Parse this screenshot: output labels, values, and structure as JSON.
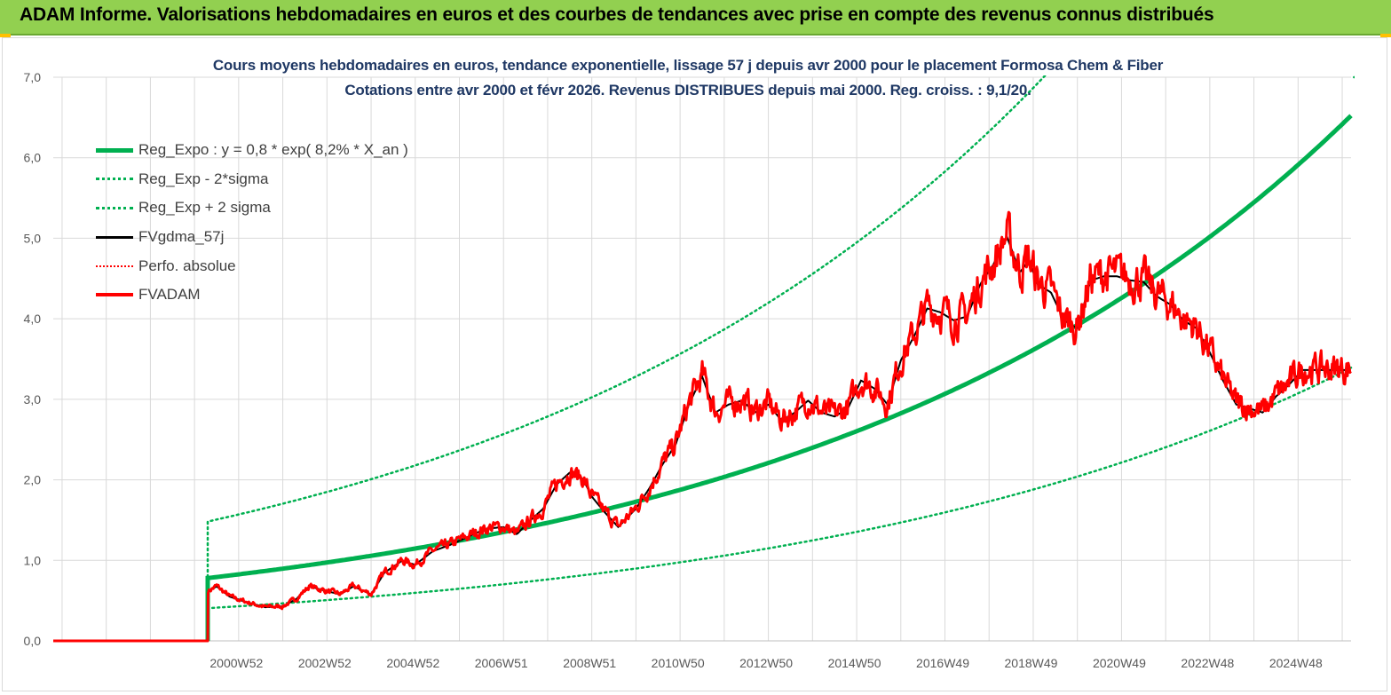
{
  "header": {
    "title": "ADAM Informe. Valorisations hebdomadaires en euros et des courbes de tendances avec prise en compte des revenus connus distribués"
  },
  "colors": {
    "header_bg": "#92d050",
    "accent": "#ffc000",
    "title_text": "#1f3864",
    "trend": "#00b050",
    "price": "#ff0000",
    "smooth": "#000000",
    "grid": "#d9d9d9"
  },
  "chart_data": {
    "type": "line",
    "title": "Cours moyens hebdomadaires en euros, tendance exponentielle, lissage 57 j depuis avr 2000 pour le placement Formosa Chem & Fiber",
    "subtitle": "Cotations entre avr 2000 et févr 2026. Revenus DISTRIBUES depuis mai 2000. Reg. croiss. : 9,1/20.",
    "x_range": [
      1996.8,
      2026.2
    ],
    "data_start": 2000.3,
    "ylim": [
      0,
      7
    ],
    "y_ticks": [
      0,
      1,
      2,
      3,
      4,
      5,
      6,
      7
    ],
    "y_tick_labels": [
      "0,0",
      "1,0",
      "2,0",
      "3,0",
      "4,0",
      "5,0",
      "6,0",
      "7,0"
    ],
    "x_ticks": [
      2000.95,
      2002.95,
      2004.95,
      2006.95,
      2008.95,
      2010.95,
      2012.95,
      2014.95,
      2016.95,
      2018.95,
      2020.95,
      2022.95,
      2024.95
    ],
    "x_tick_labels": [
      "2000W52",
      "2002W52",
      "2004W52",
      "2006W51",
      "2008W51",
      "2010W50",
      "2012W50",
      "2014W50",
      "2016W49",
      "2018W49",
      "2020W49",
      "2022W48",
      "2024W48"
    ],
    "grid": true,
    "regression": {
      "a": 0.78,
      "rate": 0.082,
      "x0": 2000.3,
      "sigma_factor_low": 0.52,
      "sigma_factor_high": 1.9
    },
    "legend": [
      {
        "label": "Reg_Expo : y = 0,8 * exp( 8,2% *  X_an )",
        "style": "solid-green"
      },
      {
        "label": "Reg_Exp - 2*sigma",
        "style": "dot-green"
      },
      {
        "label": "Reg_Exp + 2 sigma",
        "style": "dot-green"
      },
      {
        "label": "FVgdma_57j",
        "style": "solid-black"
      },
      {
        "label": "Perfo. absolue",
        "style": "dot-red"
      },
      {
        "label": "FVADAM",
        "style": "solid-red"
      }
    ],
    "series": [
      {
        "name": "FVADAM",
        "x": [
          1996.8,
          2000.3,
          2000.31,
          2000.5,
          2000.8,
          2001.2,
          2001.6,
          2002.0,
          2002.3,
          2002.6,
          2003.0,
          2003.3,
          2003.6,
          2004.0,
          2004.3,
          2004.7,
          2005.0,
          2005.4,
          2005.8,
          2006.2,
          2006.6,
          2007.0,
          2007.3,
          2007.6,
          2007.9,
          2008.2,
          2008.5,
          2008.8,
          2009.0,
          2009.3,
          2009.6,
          2010.0,
          2010.3,
          2010.6,
          2010.9,
          2011.2,
          2011.5,
          2011.8,
          2012.1,
          2012.4,
          2012.7,
          2013.0,
          2013.3,
          2013.6,
          2013.9,
          2014.2,
          2014.5,
          2014.8,
          2015.1,
          2015.4,
          2015.7,
          2016.0,
          2016.3,
          2016.6,
          2016.9,
          2017.2,
          2017.5,
          2017.8,
          2018.1,
          2018.4,
          2018.7,
          2018.9,
          2019.1,
          2019.4,
          2019.7,
          2020.0,
          2020.3,
          2020.6,
          2020.9,
          2021.2,
          2021.5,
          2021.8,
          2022.1,
          2022.4,
          2022.7,
          2023.0,
          2023.3,
          2023.6,
          2023.9,
          2024.2,
          2024.5,
          2024.8,
          2025.1,
          2025.4,
          2025.7,
          2026.0,
          2026.2
        ],
        "y": [
          0,
          0,
          0.62,
          0.68,
          0.55,
          0.48,
          0.42,
          0.43,
          0.52,
          0.68,
          0.62,
          0.58,
          0.68,
          0.58,
          0.85,
          1.0,
          0.95,
          1.12,
          1.2,
          1.3,
          1.4,
          1.42,
          1.33,
          1.5,
          1.65,
          1.95,
          2.1,
          2.02,
          1.8,
          1.6,
          1.42,
          1.65,
          1.9,
          2.2,
          2.45,
          2.95,
          3.3,
          2.85,
          2.95,
          3.0,
          2.85,
          2.95,
          2.75,
          2.85,
          3.0,
          2.85,
          2.8,
          2.9,
          3.25,
          3.15,
          2.95,
          3.5,
          3.8,
          4.15,
          4.1,
          4.0,
          4.05,
          4.45,
          4.7,
          5.05,
          4.6,
          4.75,
          4.45,
          4.35,
          4.0,
          3.9,
          4.5,
          4.55,
          4.55,
          4.5,
          4.48,
          4.3,
          4.2,
          4.0,
          3.9,
          3.6,
          3.25,
          2.95,
          2.9,
          2.85,
          3.05,
          3.2,
          3.38,
          3.38,
          3.38,
          3.38,
          3.38
        ]
      }
    ]
  }
}
